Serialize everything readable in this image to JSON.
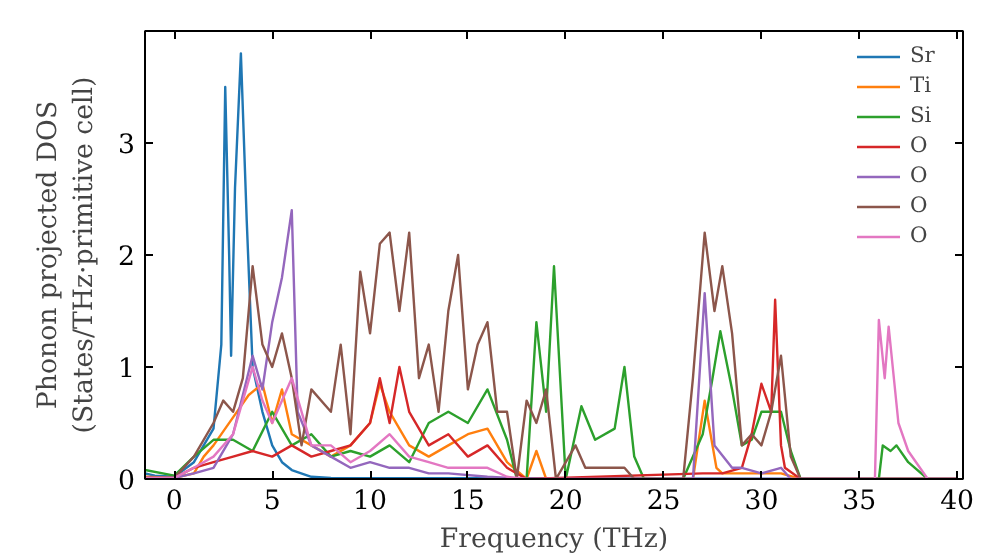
{
  "chart_data": {
    "type": "line",
    "xlabel": "Frequency (THz)",
    "ylabel": "Phonon projected DOS\n(States/THz·primitive cell)",
    "xlim": [
      -1.5,
      40.3
    ],
    "ylim": [
      0,
      4
    ],
    "xticks": [
      0,
      5,
      10,
      15,
      20,
      25,
      30,
      35,
      40
    ],
    "yticks": [
      0,
      1,
      2,
      3
    ],
    "grid": false,
    "legend": "top right",
    "marker": "none",
    "line_style": "solid",
    "series": [
      {
        "name": "Sr",
        "color": "#1f77b4",
        "x": [
          -1.5,
          -1,
          0,
          1,
          1.5,
          2,
          2.4,
          2.6,
          2.8,
          2.9,
          3.1,
          3.4,
          3.7,
          4,
          4.5,
          5,
          5.5,
          6,
          7,
          8,
          40
        ],
        "values": [
          0.05,
          0.03,
          0.02,
          0.15,
          0.3,
          0.45,
          1.2,
          3.5,
          2.0,
          1.1,
          2.6,
          3.8,
          2.3,
          1.0,
          0.6,
          0.3,
          0.15,
          0.08,
          0.02,
          0.01,
          0
        ]
      },
      {
        "name": "Ti",
        "color": "#ff7f0e",
        "x": [
          -1.5,
          0,
          1,
          1.5,
          2,
          3,
          3.8,
          4.5,
          5,
          5.5,
          6,
          7,
          8,
          9,
          10,
          10.5,
          11,
          12,
          13,
          14,
          15,
          16,
          17,
          18,
          18.5,
          19,
          26.5,
          27.1,
          27.7,
          28,
          31,
          32,
          40
        ],
        "values": [
          0.02,
          0.01,
          0.05,
          0.2,
          0.3,
          0.55,
          0.75,
          0.85,
          0.5,
          0.8,
          0.4,
          0.3,
          0.2,
          0.3,
          0.5,
          0.85,
          0.6,
          0.3,
          0.2,
          0.3,
          0.4,
          0.45,
          0.15,
          0,
          0.25,
          0,
          0,
          0.7,
          0.1,
          0.05,
          0.05,
          0,
          0
        ]
      },
      {
        "name": "Si",
        "color": "#2ca02c",
        "x": [
          -1.5,
          0,
          1,
          2,
          3,
          4,
          5,
          6,
          7,
          8,
          9,
          10,
          11,
          12,
          13,
          14,
          15,
          16,
          17,
          17.5,
          18,
          18.5,
          19,
          19.4,
          20,
          20.8,
          21.5,
          22.5,
          23,
          23.5,
          24,
          26,
          26.5,
          27,
          27.5,
          27.9,
          28.5,
          29,
          29.5,
          30,
          31,
          31.5,
          32,
          36,
          36.2,
          36.6,
          36.9,
          37.5,
          38.5,
          40
        ],
        "values": [
          0.08,
          0.03,
          0.2,
          0.35,
          0.35,
          0.25,
          0.6,
          0.3,
          0.4,
          0.2,
          0.25,
          0.2,
          0.3,
          0.15,
          0.5,
          0.6,
          0.5,
          0.8,
          0.35,
          0,
          0,
          1.4,
          0.6,
          1.9,
          0,
          0.65,
          0.35,
          0.45,
          1.0,
          0.2,
          0,
          0,
          0.2,
          0.4,
          0.9,
          1.32,
          0.8,
          0.3,
          0.35,
          0.6,
          0.6,
          0.25,
          0,
          0,
          0.3,
          0.25,
          0.3,
          0.15,
          0,
          0
        ]
      },
      {
        "name": "O",
        "color": "#d62728",
        "x": [
          -1.5,
          0,
          1,
          2,
          3,
          4,
          5,
          6,
          7,
          8,
          9,
          10,
          10.5,
          11,
          11.5,
          12,
          13,
          14,
          15,
          16,
          17,
          18,
          27,
          28,
          29,
          29.5,
          30,
          30.5,
          30.7,
          31,
          31.2,
          32,
          40
        ],
        "values": [
          0.01,
          0.01,
          0.1,
          0.15,
          0.2,
          0.25,
          0.2,
          0.3,
          0.2,
          0.25,
          0.3,
          0.5,
          0.9,
          0.5,
          1.0,
          0.6,
          0.3,
          0.4,
          0.2,
          0.3,
          0.1,
          0,
          0.05,
          0.05,
          0.1,
          0.4,
          0.85,
          0.6,
          1.6,
          0.3,
          0.1,
          0,
          0
        ]
      },
      {
        "name": "O",
        "color": "#9467bd",
        "x": [
          -1.5,
          0,
          1,
          2,
          3,
          4,
          4.5,
          5,
          5.5,
          6,
          6.3,
          7,
          8,
          9,
          10,
          11,
          12,
          13,
          14,
          16,
          18,
          26.5,
          27.1,
          27.6,
          28.5,
          29,
          30,
          31,
          31.5,
          40
        ],
        "values": [
          0.01,
          0.01,
          0.05,
          0.1,
          0.4,
          1.1,
          0.8,
          1.4,
          1.8,
          2.4,
          0.6,
          0.3,
          0.2,
          0.1,
          0.15,
          0.1,
          0.1,
          0.05,
          0.05,
          0.02,
          0,
          0,
          1.66,
          0.3,
          0.1,
          0.1,
          0.05,
          0.1,
          0,
          0
        ]
      },
      {
        "name": "O",
        "color": "#8c564b",
        "x": [
          -1.5,
          0,
          1,
          2,
          2.5,
          3,
          3.5,
          4,
          4.5,
          5,
          5.5,
          6,
          6.5,
          7,
          8,
          8.5,
          9,
          9.5,
          10,
          10.5,
          11,
          11.5,
          12,
          12.5,
          13,
          13.5,
          14,
          14.5,
          15,
          15.5,
          16,
          16.5,
          17,
          17.5,
          18,
          18.5,
          19,
          19.5,
          20.5,
          21,
          23,
          23.5,
          26,
          26.5,
          27.1,
          27.6,
          28,
          28.5,
          29,
          29.5,
          30,
          30.5,
          31,
          31.5,
          32,
          40
        ],
        "values": [
          0.01,
          0.01,
          0.2,
          0.5,
          0.7,
          0.6,
          0.9,
          1.9,
          1.2,
          1.0,
          1.3,
          0.9,
          0.3,
          0.8,
          0.6,
          1.2,
          0.4,
          1.85,
          1.3,
          2.1,
          2.2,
          1.5,
          2.2,
          0.9,
          1.2,
          0.6,
          1.5,
          2.0,
          0.8,
          1.2,
          1.4,
          0.6,
          0.6,
          0,
          0.7,
          0.5,
          0.8,
          0,
          0.3,
          0.1,
          0.1,
          0,
          0,
          0.9,
          2.2,
          1.5,
          1.9,
          1.3,
          0.3,
          0.4,
          0.3,
          0.6,
          1.1,
          0.2,
          0,
          0
        ]
      },
      {
        "name": "O",
        "color": "#e377c2",
        "x": [
          -1.5,
          0,
          1,
          2,
          3,
          4,
          4.5,
          5,
          6,
          7,
          8,
          9,
          10,
          11,
          12,
          13,
          14,
          15,
          16,
          17,
          18,
          35.8,
          36,
          36.3,
          36.5,
          37,
          37.5,
          38.5,
          40
        ],
        "values": [
          0.01,
          0.01,
          0.1,
          0.2,
          0.4,
          1.0,
          0.7,
          0.5,
          0.9,
          0.3,
          0.3,
          0.15,
          0.25,
          0.4,
          0.2,
          0.15,
          0.1,
          0.1,
          0.1,
          0.02,
          0,
          0,
          1.42,
          0.9,
          1.36,
          0.5,
          0.25,
          0,
          0
        ]
      }
    ]
  }
}
